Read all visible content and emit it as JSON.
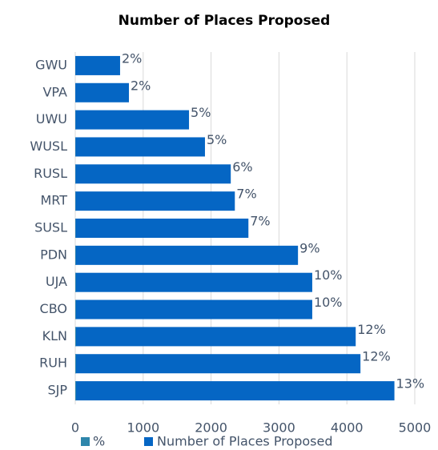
{
  "chart_data": {
    "type": "bar",
    "orientation": "horizontal",
    "title": "Number of Places Proposed",
    "categories": [
      "GWU",
      "VPA",
      "UWU",
      "WUSL",
      "RUSL",
      "MRT",
      "SUSL",
      "PDN",
      "UJA",
      "CBO",
      "KLN",
      "RUH",
      "SJP"
    ],
    "series": [
      {
        "name": "%",
        "color": "#2e86ab",
        "values": [
          2,
          2,
          5,
          5,
          6,
          7,
          7,
          9,
          10,
          10,
          12,
          12,
          13
        ],
        "value_labels": [
          "2%",
          "2%",
          "5%",
          "5%",
          "6%",
          "7%",
          "7%",
          "9%",
          "10%",
          "10%",
          "12%",
          "12%",
          "13%"
        ]
      },
      {
        "name": "Number of Places Proposed",
        "color": "#0566c4",
        "values": [
          660,
          790,
          1675,
          1910,
          2290,
          2350,
          2550,
          3280,
          3490,
          3490,
          4130,
          4200,
          4700
        ]
      }
    ],
    "xlim": [
      0,
      5000
    ],
    "xticks": [
      0,
      1000,
      2000,
      3000,
      4000,
      5000
    ],
    "grid": true
  }
}
